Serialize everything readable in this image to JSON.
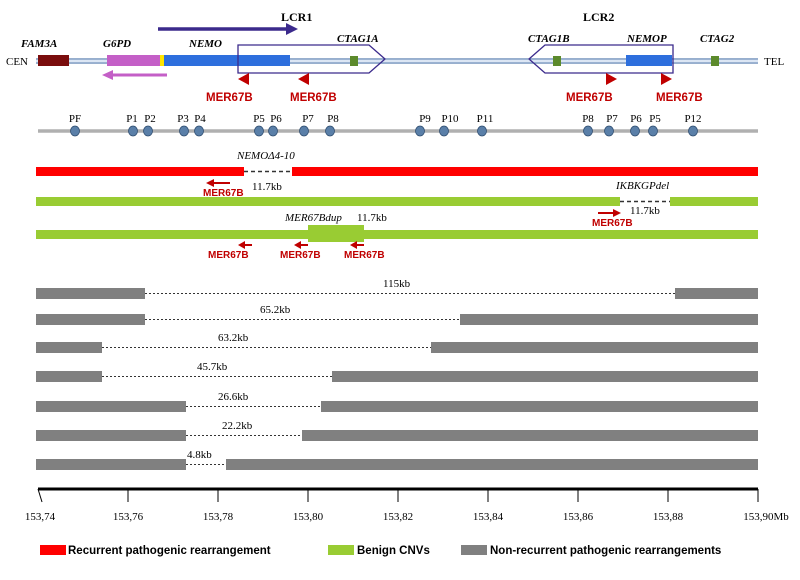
{
  "top": {
    "cen_label": "CEN",
    "tel_label": "TEL",
    "lcr1_label": "LCR1",
    "lcr2_label": "LCR2",
    "genes": {
      "fam3a": "FAM3A",
      "g6pd": "G6PD",
      "nemo": "NEMO",
      "ctag1a": "CTAG1A",
      "ctag1b": "CTAG1B",
      "nemop": "NEMOP",
      "ctag2": "CTAG2"
    },
    "mer67b": "MER67B"
  },
  "probes": [
    "PF",
    "P1",
    "P2",
    "P3",
    "P4",
    "P5",
    "P6",
    "P7",
    "P8",
    "P9",
    "P10",
    "P11",
    "P8",
    "P7",
    "P6",
    "P5",
    "P12"
  ],
  "rearrangements": {
    "nemo_del_label": "NEMOΔ4-10",
    "nemo_del_size": "11.7kb",
    "ikbkgp_label": "IKBKGPdel",
    "ikbkgp_size": "11.7kb",
    "mer67bdup_label": "MER67Bdup",
    "mer67bdup_size": "11.7kb",
    "mer_small": "MER67B"
  },
  "nonrecurrent": [
    {
      "size": "115kb"
    },
    {
      "size": "65.2kb"
    },
    {
      "size": "63.2kb"
    },
    {
      "size": "45.7kb"
    },
    {
      "size": "26.6kb"
    },
    {
      "size": "22.2kb"
    },
    {
      "size": "4.8kb"
    }
  ],
  "axis": {
    "ticks": [
      "153,74",
      "153,76",
      "153,78",
      "153,80",
      "153,82",
      "153,84",
      "153,86",
      "153,88",
      "153,90Mb"
    ]
  },
  "legend": {
    "recurrent": "Recurrent pathogenic rearrangement",
    "benign": "Benign CNVs",
    "nonrecurrent": "Non-recurrent pathogenic rearrangements"
  },
  "colors": {
    "recurrent": "#ff0000",
    "benign": "#99cc33",
    "nonrecurrent": "#808080",
    "nemo": "#2e6fdd",
    "g6pd": "#c45fc7",
    "fam3a": "#7a0d0d",
    "ctag": "#5c8a2c",
    "mer": "#c00000",
    "lcr": "#3b2a8c"
  }
}
